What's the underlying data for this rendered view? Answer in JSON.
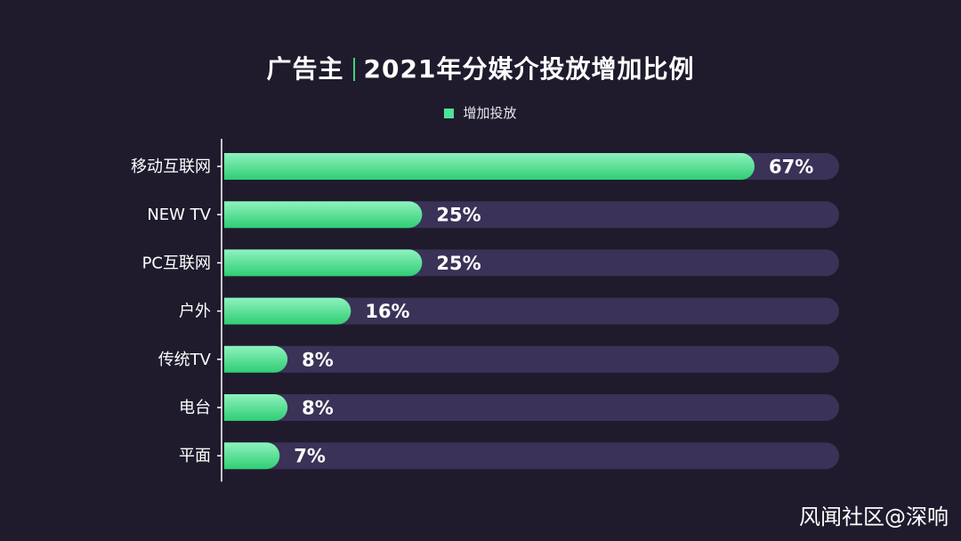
{
  "title": {
    "part1": "广告主",
    "part2": "2021年分媒介投放增加比例"
  },
  "watermark": "风闻社区@深响",
  "colors": {
    "background": "#1f1b2d",
    "track": "#3a3257",
    "bar_light": "#8ef2be",
    "bar_dark": "#2fce73",
    "accent": "#3fd27e"
  },
  "chart_data": {
    "type": "bar",
    "orientation": "horizontal",
    "categories": [
      "移动互联网",
      "NEW TV",
      "PC互联网",
      "户外",
      "传统TV",
      "电台",
      "平面"
    ],
    "series": [
      {
        "name": "增加投放",
        "values": [
          67,
          25,
          25,
          16,
          8,
          8,
          7
        ],
        "labels": [
          "67%",
          "25%",
          "25%",
          "16%",
          "8%",
          "8%",
          "7%"
        ]
      }
    ],
    "xlim": [
      0,
      100
    ],
    "grid": false,
    "legend_position": "top-center"
  }
}
